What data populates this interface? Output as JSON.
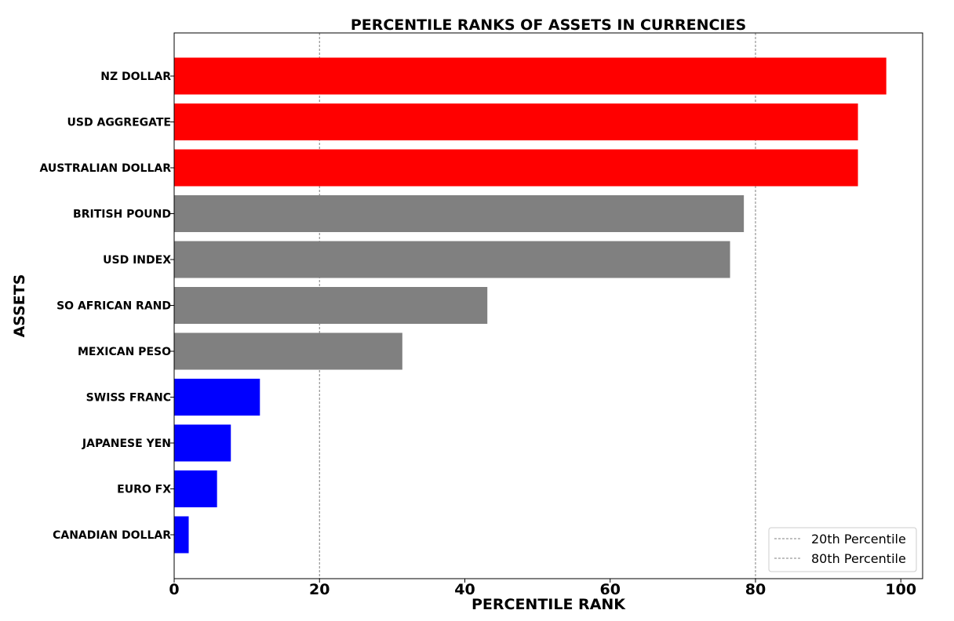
{
  "chart_data": {
    "type": "bar",
    "orientation": "horizontal",
    "title": "PERCENTILE RANKS OF ASSETS IN CURRENCIES",
    "xlabel": "PERCENTILE RANK",
    "ylabel": "ASSETS",
    "xlim": [
      0,
      103
    ],
    "xticks": [
      0,
      20,
      40,
      60,
      80,
      100
    ],
    "grid": false,
    "legend_position": "bottom-right",
    "categories": [
      "NZ DOLLAR",
      "USD AGGREGATE",
      "AUSTRALIAN DOLLAR",
      "BRITISH POUND",
      "USD INDEX",
      "SO AFRICAN RAND",
      "MEXICAN PESO",
      "SWISS FRANC",
      "JAPANESE YEN",
      "EURO FX",
      "CANADIAN DOLLAR"
    ],
    "values": [
      98.0,
      94.1,
      94.1,
      78.4,
      76.5,
      43.1,
      31.4,
      11.8,
      7.8,
      5.9,
      2.0
    ],
    "bar_colors": [
      "#ff0000",
      "#ff0000",
      "#ff0000",
      "#808080",
      "#808080",
      "#808080",
      "#808080",
      "#0000ff",
      "#0000ff",
      "#0000ff",
      "#0000ff"
    ],
    "reference_lines": [
      {
        "label": "20th Percentile",
        "x": 20,
        "color": "#808080",
        "style": "dashed"
      },
      {
        "label": "80th Percentile",
        "x": 80,
        "color": "#808080",
        "style": "dashed"
      }
    ]
  }
}
